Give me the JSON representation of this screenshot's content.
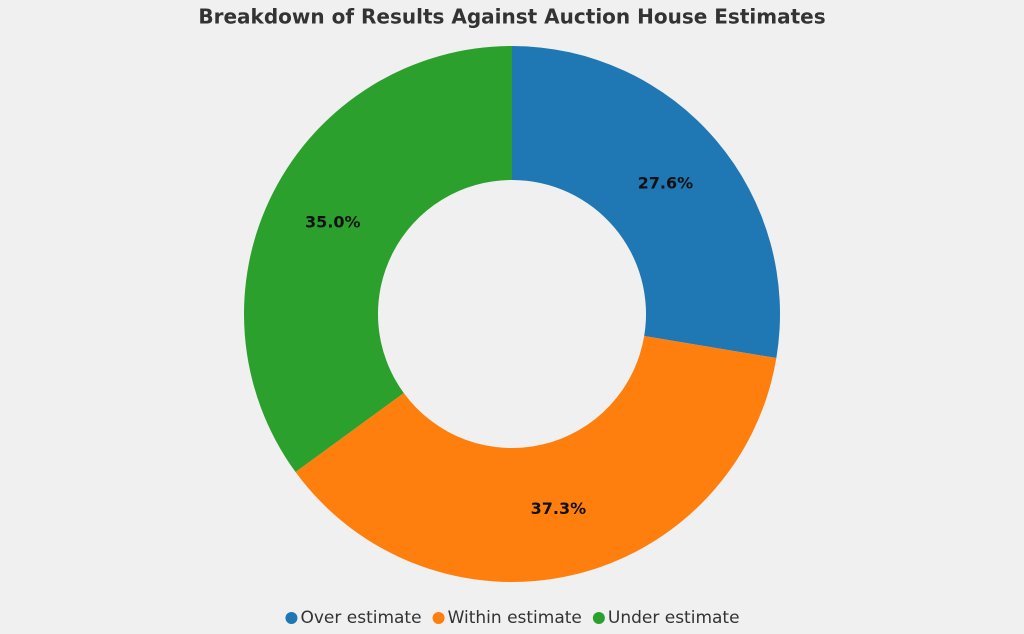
{
  "chart_data": {
    "type": "donut",
    "title": "Breakdown of Results Against Auction House Estimates",
    "categories": [
      "Over estimate",
      "Within estimate",
      "Under estimate"
    ],
    "values": [
      27.6,
      37.3,
      35.0
    ],
    "value_labels": [
      "27.6%",
      "37.3%",
      "35.0%"
    ],
    "colors": [
      "#1f77b4",
      "#ff7f0e",
      "#2ca02c"
    ],
    "legend": "bottom"
  }
}
